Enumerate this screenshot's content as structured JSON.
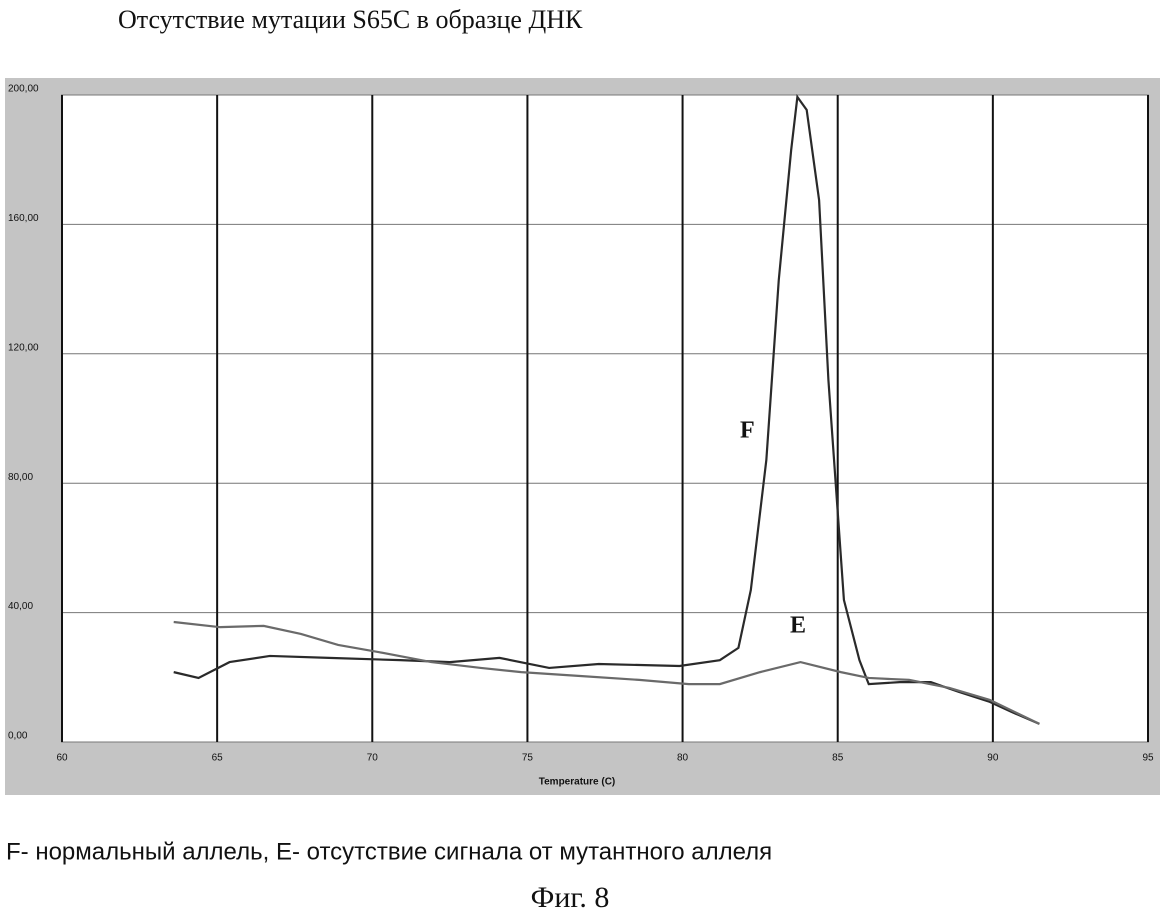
{
  "chart_data": {
    "type": "line",
    "title": "Отсутствие мутации S65C   в образце ДНК",
    "x_label": "Temperature (C)",
    "caption": "F- нормальный аллель, E- отсутствие сигнала от мутантного аллеля",
    "figure_label": "Фиг. 8",
    "xlim": [
      60,
      95
    ],
    "xticks": [
      60,
      65,
      70,
      75,
      80,
      85,
      90,
      95
    ],
    "ylim": [
      0,
      200
    ],
    "yticks": [
      {
        "value": 0,
        "label": "0,00"
      },
      {
        "value": 40,
        "label": "40,00"
      },
      {
        "value": 80,
        "label": "80,00"
      },
      {
        "value": 120,
        "label": "120,00"
      },
      {
        "value": 160,
        "label": "160,00"
      },
      {
        "value": 200,
        "label": "200,00"
      }
    ],
    "grid": true,
    "series": [
      {
        "name": "F",
        "color": "#2a2a2a",
        "x": [
          63.6,
          64.4,
          65.4,
          66.7,
          68.6,
          70.9,
          72.5,
          74.1,
          75.7,
          77.3,
          79.9,
          81.2,
          81.8,
          82.2,
          82.7,
          83.1,
          83.5,
          83.7,
          84.0,
          84.4,
          84.7,
          85.2,
          85.7,
          86.0,
          87.0,
          88.0,
          88.9,
          89.9,
          90.6,
          91.5
        ],
        "values": [
          21.6,
          19.8,
          24.7,
          26.6,
          26.0,
          25.3,
          24.7,
          26.0,
          22.9,
          24.1,
          23.5,
          25.3,
          29.1,
          47.0,
          87.2,
          142.8,
          183.0,
          199.4,
          195.4,
          167.5,
          111.9,
          43.9,
          25.3,
          17.9,
          18.5,
          18.5,
          15.5,
          12.4,
          9.3,
          5.6
        ]
      },
      {
        "name": "E",
        "color": "#6a6a6a",
        "x": [
          63.6,
          65.1,
          66.5,
          67.7,
          68.9,
          70.2,
          71.9,
          73.5,
          74.8,
          76.7,
          78.6,
          80.2,
          81.2,
          82.5,
          83.8,
          85.1,
          86.0,
          87.3,
          88.6,
          89.9,
          91.5
        ],
        "values": [
          37.1,
          35.5,
          35.9,
          33.4,
          30.0,
          27.8,
          24.7,
          22.9,
          21.6,
          20.4,
          19.2,
          17.9,
          17.9,
          21.6,
          24.7,
          21.6,
          19.8,
          19.2,
          16.7,
          13.0,
          5.6
        ]
      }
    ]
  }
}
